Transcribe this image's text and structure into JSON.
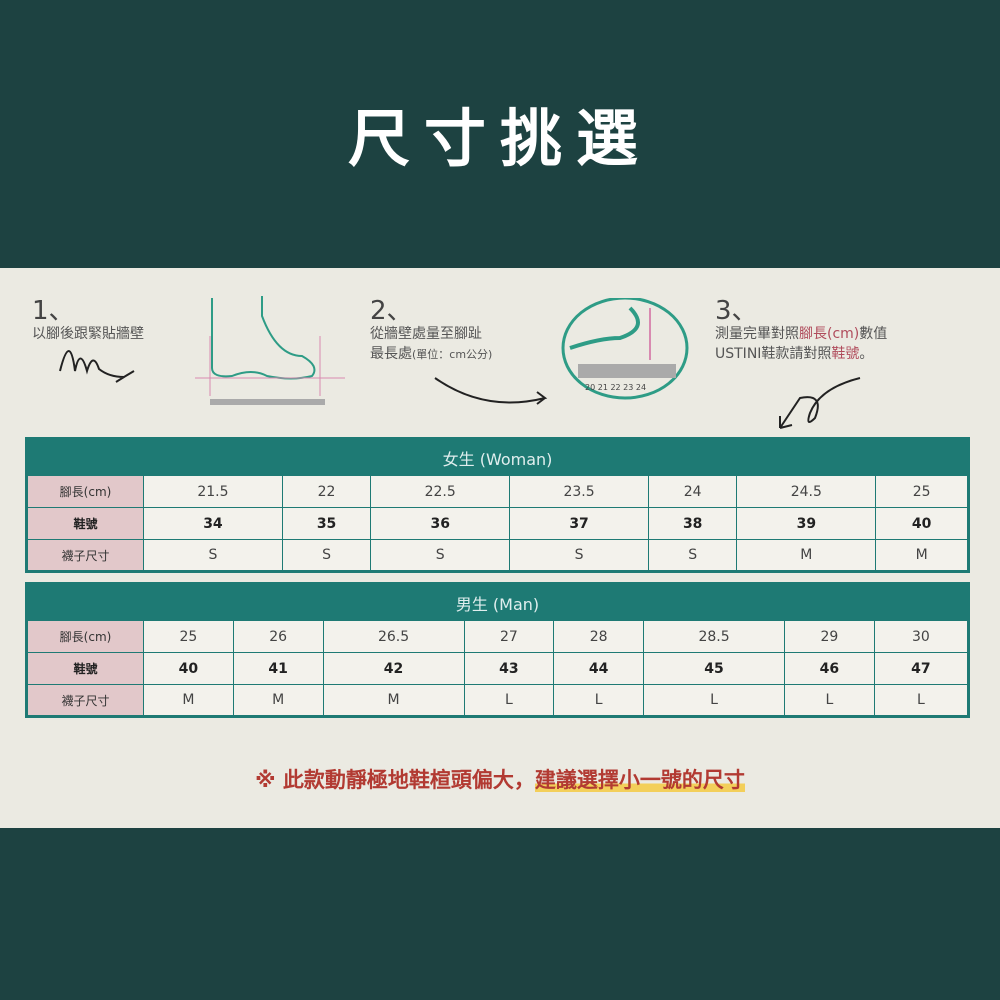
{
  "title": "尺寸挑選",
  "steps": [
    {
      "num": "1、",
      "text": "以腳後跟緊貼牆壁"
    },
    {
      "num": "2、",
      "line1": "從牆壁處量至腳趾",
      "line2a": "最長處",
      "line2b": "(單位：cm公分)",
      "ruler": "20 21 22 23 24"
    },
    {
      "num": "3、",
      "a": "測量完畢對照",
      "b": "腳長(cm)",
      "c": "數值",
      "d": "USTINI鞋款請對照",
      "e": "鞋號",
      "f": "。"
    }
  ],
  "women": {
    "header": "女生 (Woman)",
    "labels": [
      "腳長(cm)",
      "鞋號",
      "襪子尺寸"
    ],
    "foot": [
      "21.5",
      "22",
      "22.5",
      "23.5",
      "24",
      "24.5",
      "25"
    ],
    "shoe": [
      "34",
      "35",
      "36",
      "37",
      "38",
      "39",
      "40"
    ],
    "sock": [
      "S",
      "S",
      "S",
      "S",
      "S",
      "M",
      "M"
    ]
  },
  "men": {
    "header": "男生 (Man)",
    "labels": [
      "腳長(cm)",
      "鞋號",
      "襪子尺寸"
    ],
    "foot": [
      "25",
      "26",
      "26.5",
      "27",
      "28",
      "28.5",
      "29",
      "30"
    ],
    "shoe": [
      "40",
      "41",
      "42",
      "43",
      "44",
      "45",
      "46",
      "47"
    ],
    "sock": [
      "M",
      "M",
      "M",
      "L",
      "L",
      "L",
      "L",
      "L"
    ]
  },
  "note": {
    "prefix": "※ 此款動靜極地鞋楦頭偏大，",
    "highlight": "建議選擇小一號的尺寸"
  },
  "colors": {
    "background": "#1d4241",
    "panel": "#ebeae2",
    "table": "#1e7a74",
    "label_cell": "#e2c8ca",
    "note": "#b23a32"
  }
}
